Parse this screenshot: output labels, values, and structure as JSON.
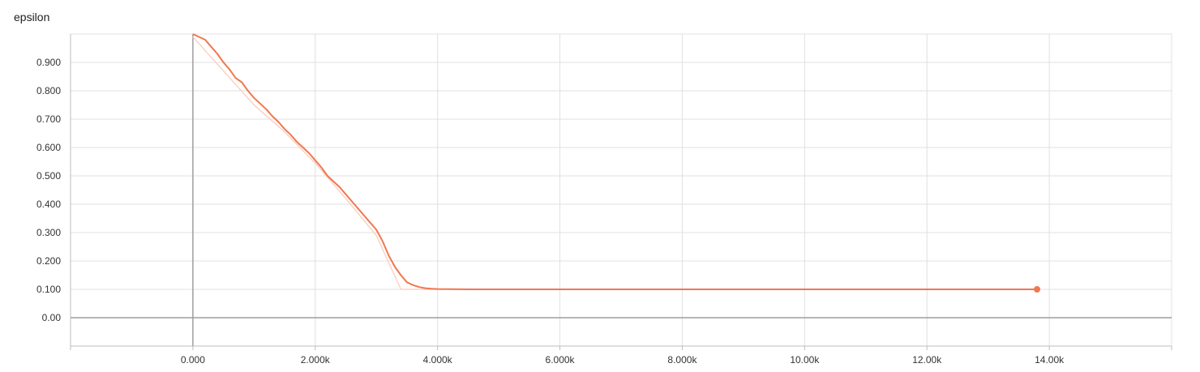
{
  "chart_data": {
    "type": "line",
    "title": "epsilon",
    "xlabel": "",
    "ylabel": "",
    "xlim": [
      -2000,
      16000
    ],
    "ylim": [
      -0.1,
      1.0
    ],
    "x_ticks": [
      {
        "value": 0,
        "label": "0.000"
      },
      {
        "value": 2000,
        "label": "2.000k"
      },
      {
        "value": 4000,
        "label": "4.000k"
      },
      {
        "value": 6000,
        "label": "6.000k"
      },
      {
        "value": 8000,
        "label": "8.000k"
      },
      {
        "value": 10000,
        "label": "10.00k"
      },
      {
        "value": 12000,
        "label": "12.00k"
      },
      {
        "value": 14000,
        "label": "14.00k"
      }
    ],
    "y_ticks": [
      {
        "value": 0.9,
        "label": "0.900"
      },
      {
        "value": 0.8,
        "label": "0.800"
      },
      {
        "value": 0.7,
        "label": "0.700"
      },
      {
        "value": 0.6,
        "label": "0.600"
      },
      {
        "value": 0.5,
        "label": "0.500"
      },
      {
        "value": 0.4,
        "label": "0.400"
      },
      {
        "value": 0.3,
        "label": "0.300"
      },
      {
        "value": 0.2,
        "label": "0.200"
      },
      {
        "value": 0.1,
        "label": "0.100"
      },
      {
        "value": 0.0,
        "label": "0.00"
      }
    ],
    "grid": true,
    "colors": {
      "smoothed": "#f07850",
      "raw": "#fbd2c2",
      "grid": "#e0e0e0",
      "axis": "#9e9e9e"
    },
    "series": [
      {
        "role": "smoothed",
        "x": [
          0,
          100,
          200,
          300,
          400,
          500,
          600,
          700,
          800,
          900,
          1000,
          1100,
          1200,
          1300,
          1400,
          1500,
          1600,
          1700,
          1800,
          1900,
          2000,
          2100,
          2200,
          2300,
          2400,
          2500,
          2600,
          2700,
          2800,
          2900,
          3000,
          3100,
          3200,
          3300,
          3400,
          3500,
          3600,
          3700,
          3800,
          3900,
          4000,
          4200,
          4500,
          5000,
          6000,
          8000,
          10000,
          12000,
          13800
        ],
        "y": [
          1.0,
          0.99,
          0.98,
          0.955,
          0.93,
          0.9,
          0.875,
          0.845,
          0.83,
          0.8,
          0.775,
          0.755,
          0.735,
          0.71,
          0.69,
          0.665,
          0.645,
          0.62,
          0.6,
          0.58,
          0.555,
          0.53,
          0.5,
          0.48,
          0.46,
          0.435,
          0.41,
          0.385,
          0.36,
          0.335,
          0.31,
          0.27,
          0.22,
          0.18,
          0.15,
          0.125,
          0.115,
          0.108,
          0.104,
          0.102,
          0.101,
          0.1005,
          0.1,
          0.1,
          0.1,
          0.1,
          0.1,
          0.1,
          0.1
        ]
      },
      {
        "role": "raw",
        "x": [
          0,
          500,
          1000,
          1500,
          2000,
          2500,
          3000,
          3400,
          3500,
          4000,
          6000,
          8000,
          10000,
          12000,
          13800
        ],
        "y": [
          0.99,
          0.87,
          0.75,
          0.655,
          0.545,
          0.42,
          0.29,
          0.1,
          0.1,
          0.1,
          0.1,
          0.1,
          0.1,
          0.1,
          0.1
        ]
      }
    ]
  }
}
